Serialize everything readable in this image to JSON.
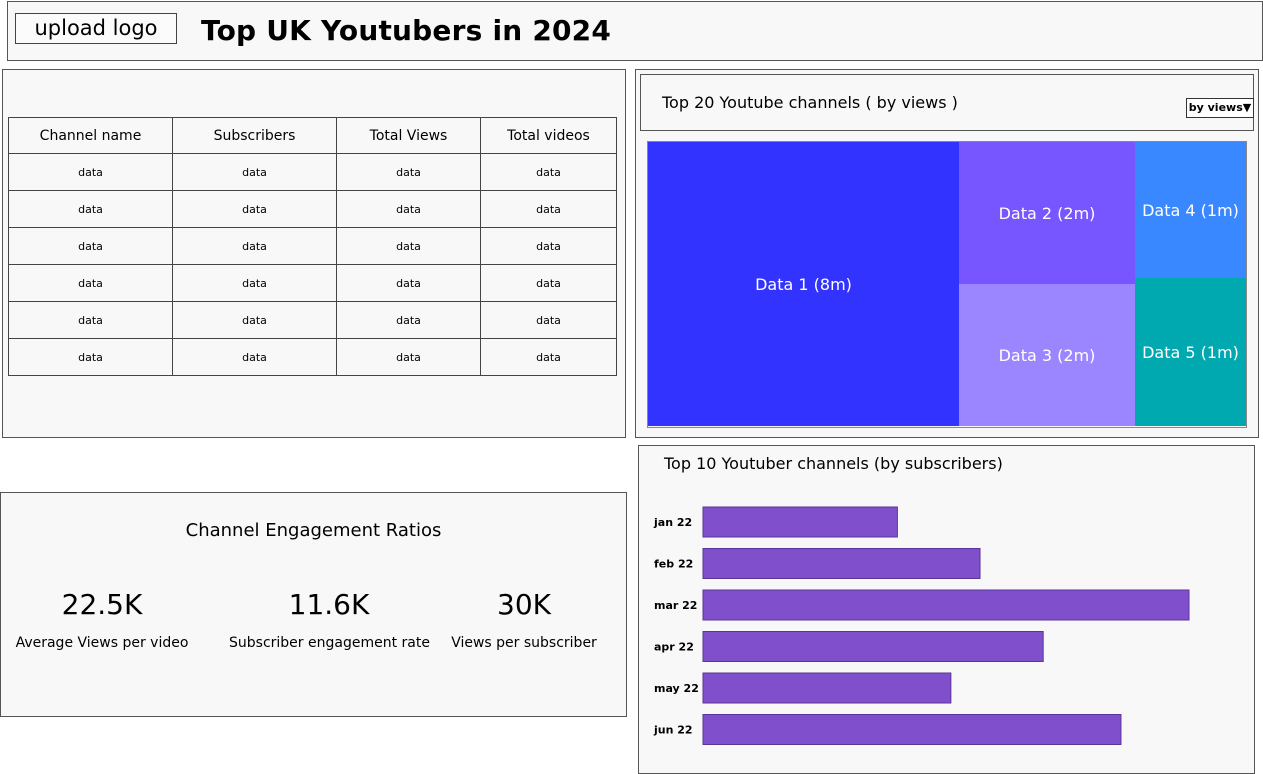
{
  "header": {
    "upload_label": "upload logo",
    "title": "Top UK Youtubers in 2024"
  },
  "table": {
    "columns": [
      "Channel name",
      "Subscribers",
      "Total Views",
      "Total videos"
    ],
    "rows": [
      [
        "data",
        "data",
        "data",
        "data"
      ],
      [
        "data",
        "data",
        "data",
        "data"
      ],
      [
        "data",
        "data",
        "data",
        "data"
      ],
      [
        "data",
        "data",
        "data",
        "data"
      ],
      [
        "data",
        "data",
        "data",
        "data"
      ],
      [
        "data",
        "data",
        "data",
        "data"
      ]
    ]
  },
  "treemap": {
    "title": "Top 20 Youtube channels ( by views )",
    "dropdown_label": "by views▼",
    "tiles": [
      {
        "label": "Data 1 (8m)",
        "value": 8,
        "color": "#3333ff"
      },
      {
        "label": "Data 2 (2m)",
        "value": 2,
        "color": "#7755ff"
      },
      {
        "label": "Data 3 (2m)",
        "value": 2,
        "color": "#9b86ff"
      },
      {
        "label": "Data 4 (1m)",
        "value": 1,
        "color": "#3a88ff"
      },
      {
        "label": "Data 5 (1m)",
        "value": 1,
        "color": "#00a8b0"
      }
    ]
  },
  "engagement": {
    "title": "Channel Engagement Ratios",
    "metrics": [
      {
        "value": "22.5K",
        "label": "Average Views per video"
      },
      {
        "value": "11.6K",
        "label": "Subscriber engagement rate"
      },
      {
        "value": "30K",
        "label": "Views per subscriber"
      }
    ]
  },
  "chart_data": {
    "type": "bar",
    "orientation": "horizontal",
    "title": "Top 10 Youtuber channels (by subscribers)",
    "categories": [
      "jan 22",
      "feb 22",
      "mar 22",
      "apr 22",
      "may 22",
      "jun 22"
    ],
    "values": [
      40,
      57,
      100,
      70,
      51,
      86
    ],
    "bar_color": "#8050cc",
    "xlim": [
      0,
      100
    ],
    "grid": false
  }
}
